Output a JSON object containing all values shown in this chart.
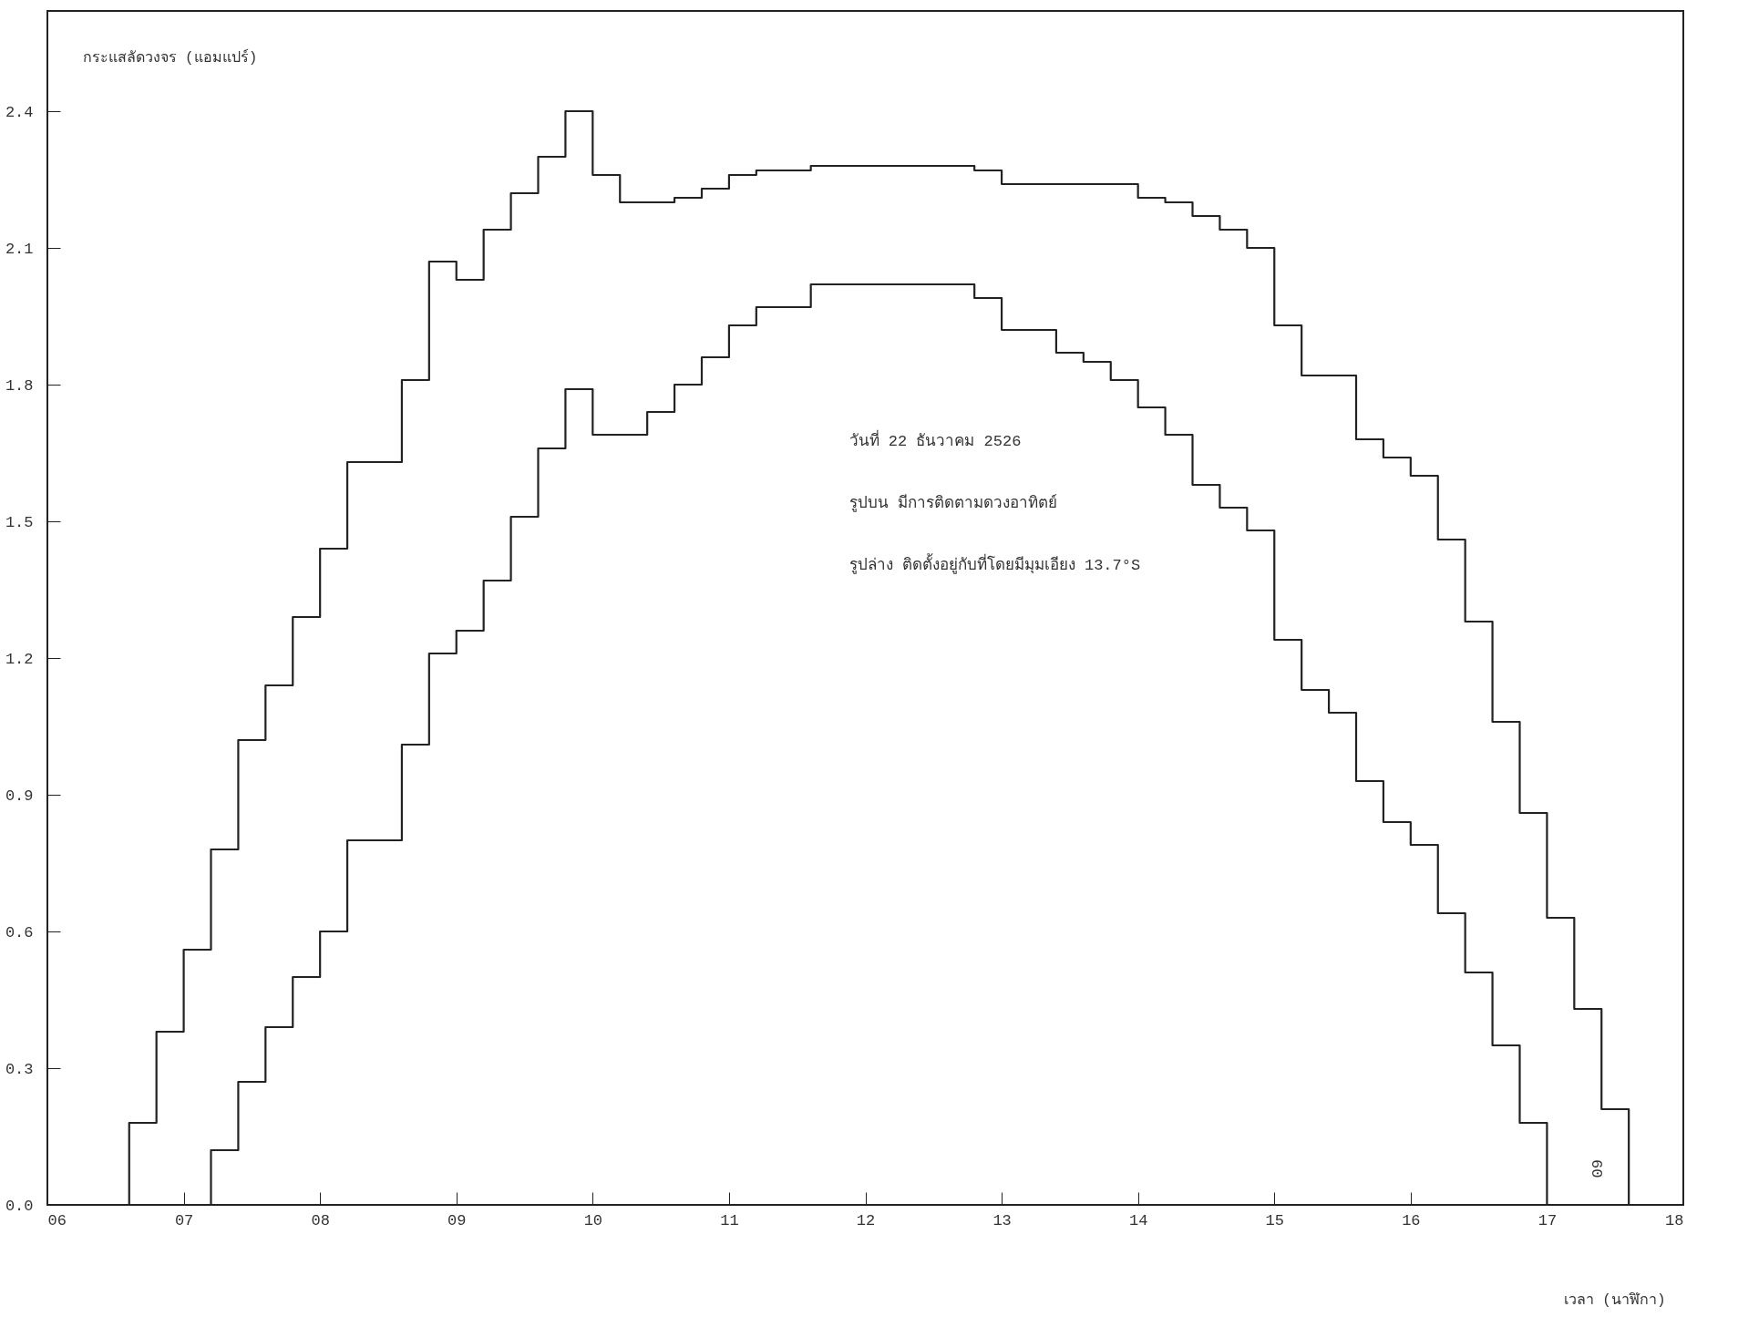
{
  "chart_data": {
    "type": "step",
    "xlabel": "เวลา (นาฬิกา)",
    "ylabel": "กระแสลัดวงจร (แอมแปร์)",
    "xlim": [
      6,
      18
    ],
    "ylim": [
      0,
      2.62
    ],
    "xticks": [
      {
        "value": 6,
        "label": "06"
      },
      {
        "value": 7,
        "label": "07"
      },
      {
        "value": 8,
        "label": "08"
      },
      {
        "value": 9,
        "label": "09"
      },
      10,
      11,
      12,
      13,
      14,
      15,
      16,
      17,
      18
    ],
    "yticks": [
      {
        "value": 0,
        "label": "0.0"
      },
      0.3,
      0.6,
      0.9,
      1.2,
      1.5,
      1.8,
      2.1,
      2.4
    ],
    "grid": false,
    "legend": false,
    "marker": "none",
    "series": [
      {
        "color": "#222222",
        "x": [
          6.6,
          6.6,
          6.8,
          7.0,
          7.2,
          7.4,
          7.6,
          7.8,
          8.0,
          8.2,
          8.6,
          8.8,
          9.0,
          9.2,
          9.4,
          9.6,
          9.8,
          10.0,
          10.2,
          10.6,
          10.8,
          11.0,
          11.2,
          11.6,
          12.8,
          13.0,
          14.0,
          14.2,
          14.4,
          14.6,
          14.8,
          15.0,
          15.2,
          15.6,
          15.8,
          16.0,
          16.2,
          16.4,
          16.6,
          16.8,
          17.0,
          17.2,
          17.4,
          17.6
        ],
        "values": [
          0,
          0.18,
          0.38,
          0.56,
          0.78,
          1.02,
          1.14,
          1.29,
          1.44,
          1.63,
          1.81,
          2.07,
          2.03,
          2.14,
          2.22,
          2.3,
          2.4,
          2.26,
          2.2,
          2.21,
          2.23,
          2.26,
          2.27,
          2.28,
          2.27,
          2.24,
          2.21,
          2.2,
          2.17,
          2.14,
          2.1,
          1.93,
          1.82,
          1.68,
          1.64,
          1.6,
          1.46,
          1.28,
          1.06,
          0.86,
          0.63,
          0.43,
          0.21,
          0
        ]
      },
      {
        "color": "#222222",
        "x": [
          7.2,
          7.2,
          7.4,
          7.6,
          7.8,
          8.0,
          8.2,
          8.6,
          8.8,
          9.0,
          9.2,
          9.4,
          9.6,
          9.8,
          10.0,
          10.4,
          10.6,
          10.8,
          11.0,
          11.2,
          11.6,
          12.8,
          13.0,
          13.4,
          13.6,
          13.8,
          14.0,
          14.2,
          14.4,
          14.6,
          14.8,
          15.0,
          15.2,
          15.4,
          15.6,
          15.8,
          16.0,
          16.2,
          16.4,
          16.6,
          16.8,
          17.0
        ],
        "values": [
          0,
          0.12,
          0.27,
          0.39,
          0.5,
          0.6,
          0.8,
          1.01,
          1.21,
          1.26,
          1.37,
          1.51,
          1.66,
          1.79,
          1.69,
          1.74,
          1.8,
          1.86,
          1.93,
          1.97,
          2.02,
          1.99,
          1.92,
          1.87,
          1.85,
          1.81,
          1.75,
          1.69,
          1.58,
          1.53,
          1.48,
          1.24,
          1.13,
          1.08,
          0.93,
          0.84,
          0.79,
          0.64,
          0.51,
          0.35,
          0.18,
          0
        ]
      }
    ],
    "annotations": [
      "วันที่  22  ธันวาคม  2526",
      "รูปบน  มีการติดตามดวงอาทิตย์",
      "รูปล่าง ติดตั้งอยู่กับที่โดยมีมุมเอียง  13.7°S",
      "60"
    ]
  }
}
